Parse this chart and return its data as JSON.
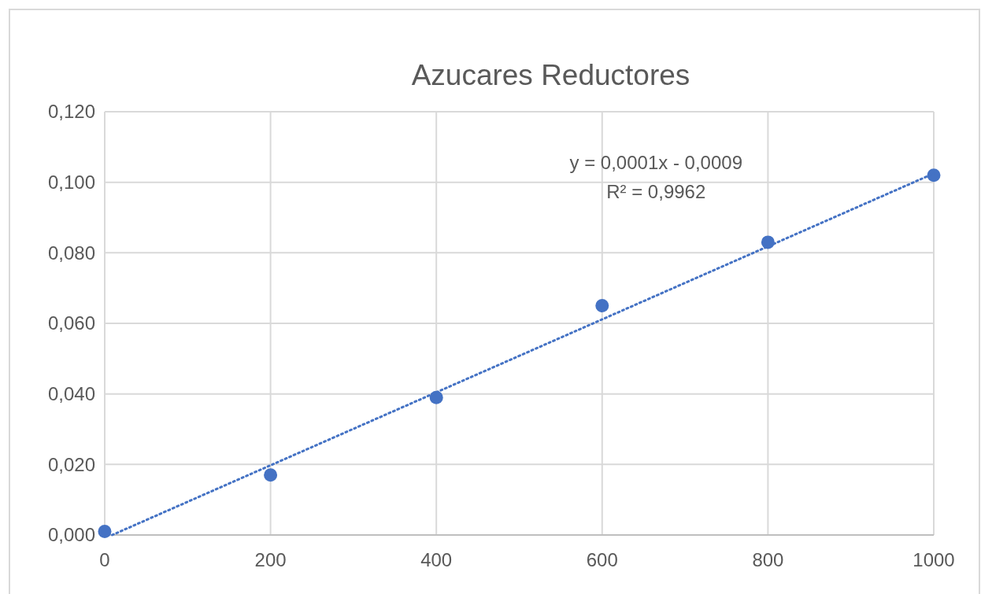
{
  "chart_data": {
    "type": "scatter",
    "title": "Azucares Reductores",
    "x": [
      0,
      200,
      400,
      600,
      800,
      1000
    ],
    "series": [
      {
        "color": "#4472c4",
        "marker": "circle",
        "values": [
          0.001,
          0.017,
          0.039,
          0.065,
          0.083,
          0.102
        ]
      },
      {
        "type": "line",
        "color": "#4472c4",
        "line_style": "dotted",
        "marker": "none",
        "x": [
          9,
          1000
        ],
        "values": [
          0,
          0.1025
        ]
      }
    ],
    "xlim": [
      0,
      1000
    ],
    "xticks": [
      0,
      200,
      400,
      600,
      800,
      1000
    ],
    "ylim": [
      0,
      0.12
    ],
    "yticks": [
      {
        "value": 0,
        "label": "0,000"
      },
      {
        "value": 0.02,
        "label": "0,020"
      },
      {
        "value": 0.04,
        "label": "0,040"
      },
      {
        "value": 0.06,
        "label": "0,060"
      },
      {
        "value": 0.08,
        "label": "0,080"
      },
      {
        "value": 0.1,
        "label": "0,100"
      },
      {
        "value": 0.12,
        "label": "0,120"
      }
    ],
    "grid": true,
    "annotations": [
      "y = 0,0001x - 0,0009",
      "R² = 0,9962"
    ]
  }
}
